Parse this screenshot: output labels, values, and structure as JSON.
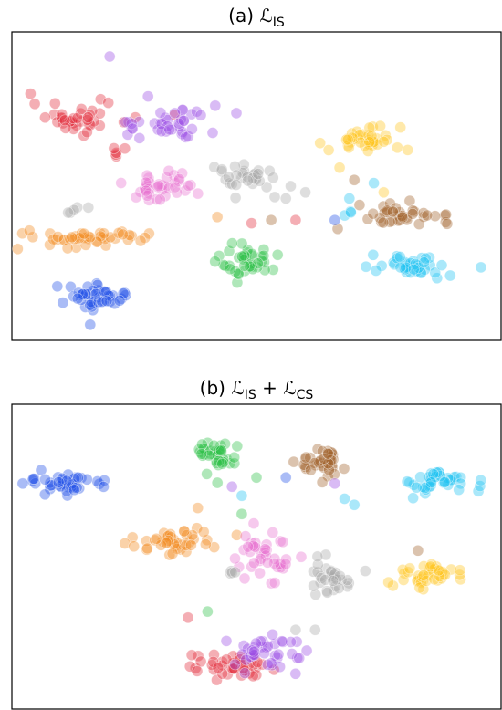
{
  "colors": {
    "blue": "#1f4fe8",
    "orange": "#f28a1c",
    "green": "#2cc046",
    "red": "#e32a3b",
    "purple": "#9a4ce6",
    "brown": "#a0612a",
    "pink": "#e872cf",
    "gray": "#a9a9a9",
    "yellow": "#ffc61f",
    "cyan": "#20c3f2"
  },
  "chart_data": [
    {
      "type": "scatter",
      "title_prefix": "(a) ",
      "title_math": "ℒ",
      "title_sub": "IS",
      "title_rest": "",
      "title_sub2": "",
      "xlim": [
        0,
        100
      ],
      "ylim": [
        0,
        100
      ],
      "grid": false,
      "series": [
        {
          "color": "purple",
          "points": [
            [
              20,
              92
            ]
          ]
        },
        {
          "color": "red",
          "clusters": [
            [
              14,
              72,
              9,
              5,
              38
            ],
            [
              22,
              62,
              3,
              3,
              5
            ]
          ]
        },
        {
          "color": "purple",
          "clusters": [
            [
              31,
              70,
              11,
              5,
              40
            ]
          ]
        },
        {
          "color": "yellow",
          "clusters": [
            [
              72,
              65,
              7,
              4,
              40
            ]
          ]
        },
        {
          "color": "pink",
          "clusters": [
            [
              31,
              50,
              7,
              5,
              38
            ]
          ]
        },
        {
          "color": "gray",
          "clusters": [
            [
              48,
              53,
              6,
              5,
              30
            ],
            [
              14,
              42,
              2,
              1.5,
              5
            ]
          ]
        },
        {
          "color": "brown",
          "clusters": [
            [
              80,
              41,
              9,
              2.5,
              38
            ]
          ]
        },
        {
          "color": "orange",
          "clusters": [
            [
              16,
              33,
              12,
              2.5,
              45
            ]
          ]
        },
        {
          "color": "green",
          "clusters": [
            [
              48,
              26,
              6,
              5,
              40
            ]
          ]
        },
        {
          "color": "cyan",
          "clusters": [
            [
              82,
              24,
              8,
              3,
              38
            ],
            [
              70,
              40,
              1.5,
              2,
              3
            ]
          ]
        },
        {
          "color": "blue",
          "clusters": [
            [
              17,
              14,
              8,
              4,
              45
            ]
          ]
        },
        {
          "color": "gray",
          "points": [
            [
              57,
              50
            ],
            [
              60,
              48
            ],
            [
              56,
              46
            ]
          ]
        },
        {
          "color": "red",
          "points": [
            [
              49,
              38
            ],
            [
              58,
              39
            ]
          ]
        },
        {
          "color": "brown",
          "points": [
            [
              53,
              39
            ],
            [
              70,
              52
            ]
          ]
        },
        {
          "color": "yellow",
          "points": [
            [
              63,
              64
            ],
            [
              67,
              56
            ],
            [
              76,
              48
            ]
          ]
        },
        {
          "color": "cyan",
          "points": [
            [
              69,
              46
            ],
            [
              74,
              51
            ]
          ]
        },
        {
          "color": "blue",
          "points": [
            [
              66,
              39
            ]
          ]
        },
        {
          "color": "orange",
          "points": [
            [
              42,
              40
            ]
          ]
        }
      ]
    },
    {
      "type": "scatter",
      "title_prefix": "(b) ",
      "title_math": "ℒ",
      "title_sub": "IS",
      "title_rest": " + ℒ",
      "title_sub2": "CS",
      "xlim": [
        0,
        100
      ],
      "ylim": [
        0,
        100
      ],
      "grid": false,
      "series": [
        {
          "color": "blue",
          "clusters": [
            [
              11,
              74,
              7,
              3.5,
              40
            ]
          ]
        },
        {
          "color": "green",
          "clusters": [
            [
              42,
              83,
              4,
              5,
              38
            ]
          ]
        },
        {
          "color": "brown",
          "clusters": [
            [
              63,
              81,
              4,
              5,
              38
            ]
          ]
        },
        {
          "color": "cyan",
          "clusters": [
            [
              87,
              75,
              7,
              4,
              40
            ]
          ]
        },
        {
          "color": "orange",
          "clusters": [
            [
              34,
              55,
              8,
              4,
              42
            ]
          ]
        },
        {
          "color": "pink",
          "clusters": [
            [
              52,
              50,
              5,
              7,
              40
            ]
          ]
        },
        {
          "color": "gray",
          "clusters": [
            [
              65,
              44,
              5,
              5,
              32
            ],
            [
              44,
              45,
              1.5,
              1.5,
              4
            ]
          ]
        },
        {
          "color": "yellow",
          "clusters": [
            [
              85,
              44,
              6,
              4,
              40
            ]
          ]
        },
        {
          "color": "red",
          "clusters": [
            [
              44,
              14,
              7,
              4,
              40
            ]
          ]
        },
        {
          "color": "purple",
          "clusters": [
            [
              52,
              19,
              7,
              5,
              40
            ]
          ]
        },
        {
          "color": "cyan",
          "points": [
            [
              68,
              69
            ],
            [
              70,
              67
            ],
            [
              47,
              70
            ]
          ]
        },
        {
          "color": "purple",
          "points": [
            [
              45,
              73
            ],
            [
              66,
              74
            ]
          ]
        },
        {
          "color": "blue",
          "points": [
            [
              56,
              76
            ]
          ]
        },
        {
          "color": "orange",
          "points": [
            [
              38,
              66
            ]
          ]
        },
        {
          "color": "green",
          "points": [
            [
              47,
              64
            ],
            [
              40,
              32
            ],
            [
              50,
              76
            ]
          ]
        },
        {
          "color": "brown",
          "points": [
            [
              83,
              52
            ]
          ]
        },
        {
          "color": "red",
          "points": [
            [
              36,
              30
            ]
          ]
        },
        {
          "color": "gray",
          "points": [
            [
              58,
              26
            ],
            [
              62,
              26
            ]
          ]
        }
      ]
    }
  ]
}
